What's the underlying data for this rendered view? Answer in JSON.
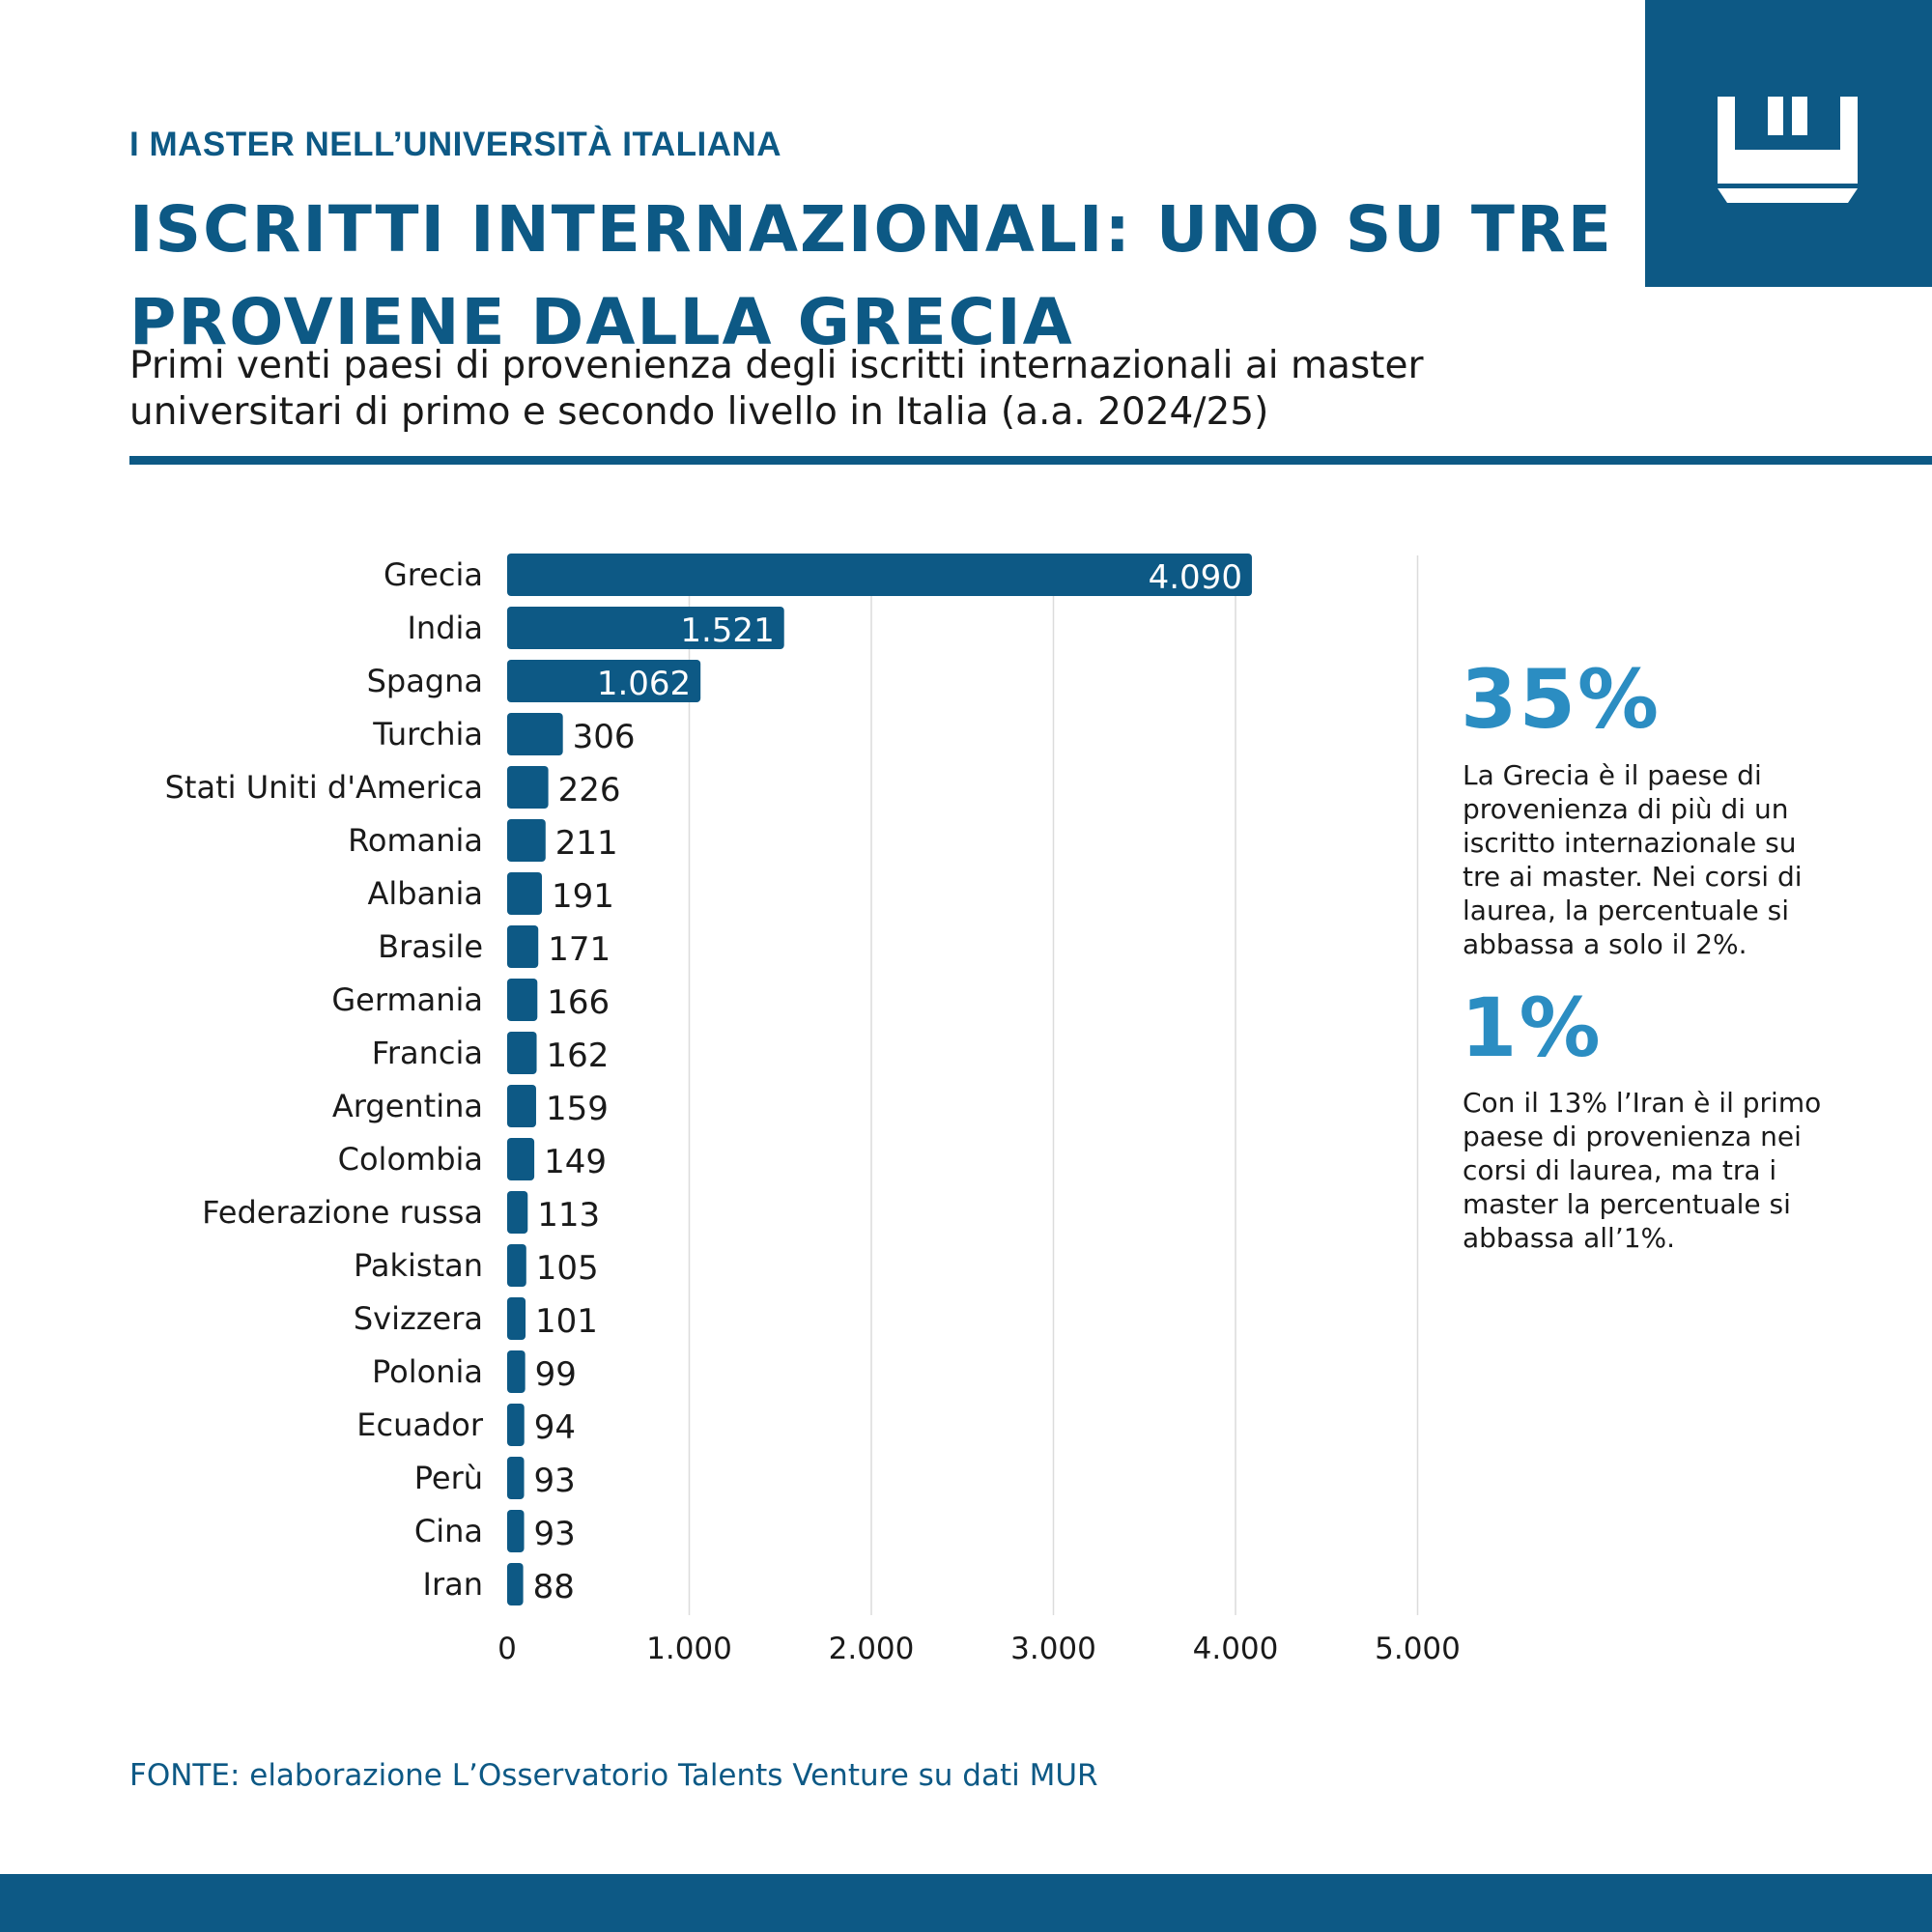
{
  "header": {
    "kicker": "I MASTER NELL’UNIVERSITÀ ITALIANA",
    "title": "ISCRITTI INTERNAZIONALI: UNO SU TRE PROVIENE DALLA GRECIA",
    "subtitle": "Primi venti paesi di provenienza degli iscritti internazionali ai master universitari di primo e secondo livello in Italia (a.a. 2024/25)",
    "logo_icon": "crown-logo-icon"
  },
  "colors": {
    "brand": "#0d5985",
    "accent": "#2b8dc2",
    "grid": "#dcdcdc"
  },
  "chart_data": {
    "type": "bar",
    "orientation": "horizontal",
    "categories": [
      "Grecia",
      "India",
      "Spagna",
      "Turchia",
      "Stati Uniti d'America",
      "Romania",
      "Albania",
      "Brasile",
      "Germania",
      "Francia",
      "Argentina",
      "Colombia",
      "Federazione russa",
      "Pakistan",
      "Svizzera",
      "Polonia",
      "Ecuador",
      "Perù",
      "Cina",
      "Iran"
    ],
    "values": [
      4090,
      1521,
      1062,
      306,
      226,
      211,
      191,
      171,
      166,
      162,
      159,
      149,
      113,
      105,
      101,
      99,
      94,
      93,
      93,
      88
    ],
    "value_labels": [
      "4.090",
      "1.521",
      "1.062",
      "306",
      "226",
      "211",
      "191",
      "171",
      "166",
      "162",
      "159",
      "149",
      "113",
      "105",
      "101",
      "99",
      "94",
      "93",
      "93",
      "88"
    ],
    "xlim": [
      0,
      5000
    ],
    "xticks": [
      0,
      1000,
      2000,
      3000,
      4000,
      5000
    ],
    "xtick_labels": [
      "0",
      "1.000",
      "2.000",
      "3.000",
      "4.000",
      "5.000"
    ],
    "grid": true
  },
  "stats": [
    {
      "value": "35%",
      "text": "La Grecia è il paese di provenienza di più di un iscritto internazionale su tre ai master. Nei corsi di laurea, la percentuale si abbassa a solo il 2%."
    },
    {
      "value": "1%",
      "text": "Con il 13% l’Iran è il primo paese di provenienza nei corsi di laurea, ma tra i master la percentuale si abbassa all’1%."
    }
  ],
  "source": "FONTE: elaborazione L’Osservatorio Talents Venture su dati MUR"
}
